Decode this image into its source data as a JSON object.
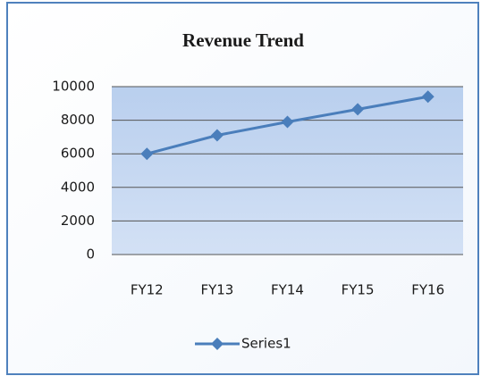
{
  "chart_data": {
    "type": "line",
    "title": "Revenue Trend",
    "categories": [
      "FY12",
      "FY13",
      "FY14",
      "FY15",
      "FY16"
    ],
    "series": [
      {
        "name": "Series1",
        "color": "#4a7ebb",
        "values": [
          6000,
          7100,
          7900,
          8650,
          9400
        ]
      }
    ],
    "ylim": [
      0,
      10000
    ],
    "yticks": [
      0,
      2000,
      4000,
      6000,
      8000,
      10000
    ],
    "grid": true,
    "legend": "bottom"
  }
}
